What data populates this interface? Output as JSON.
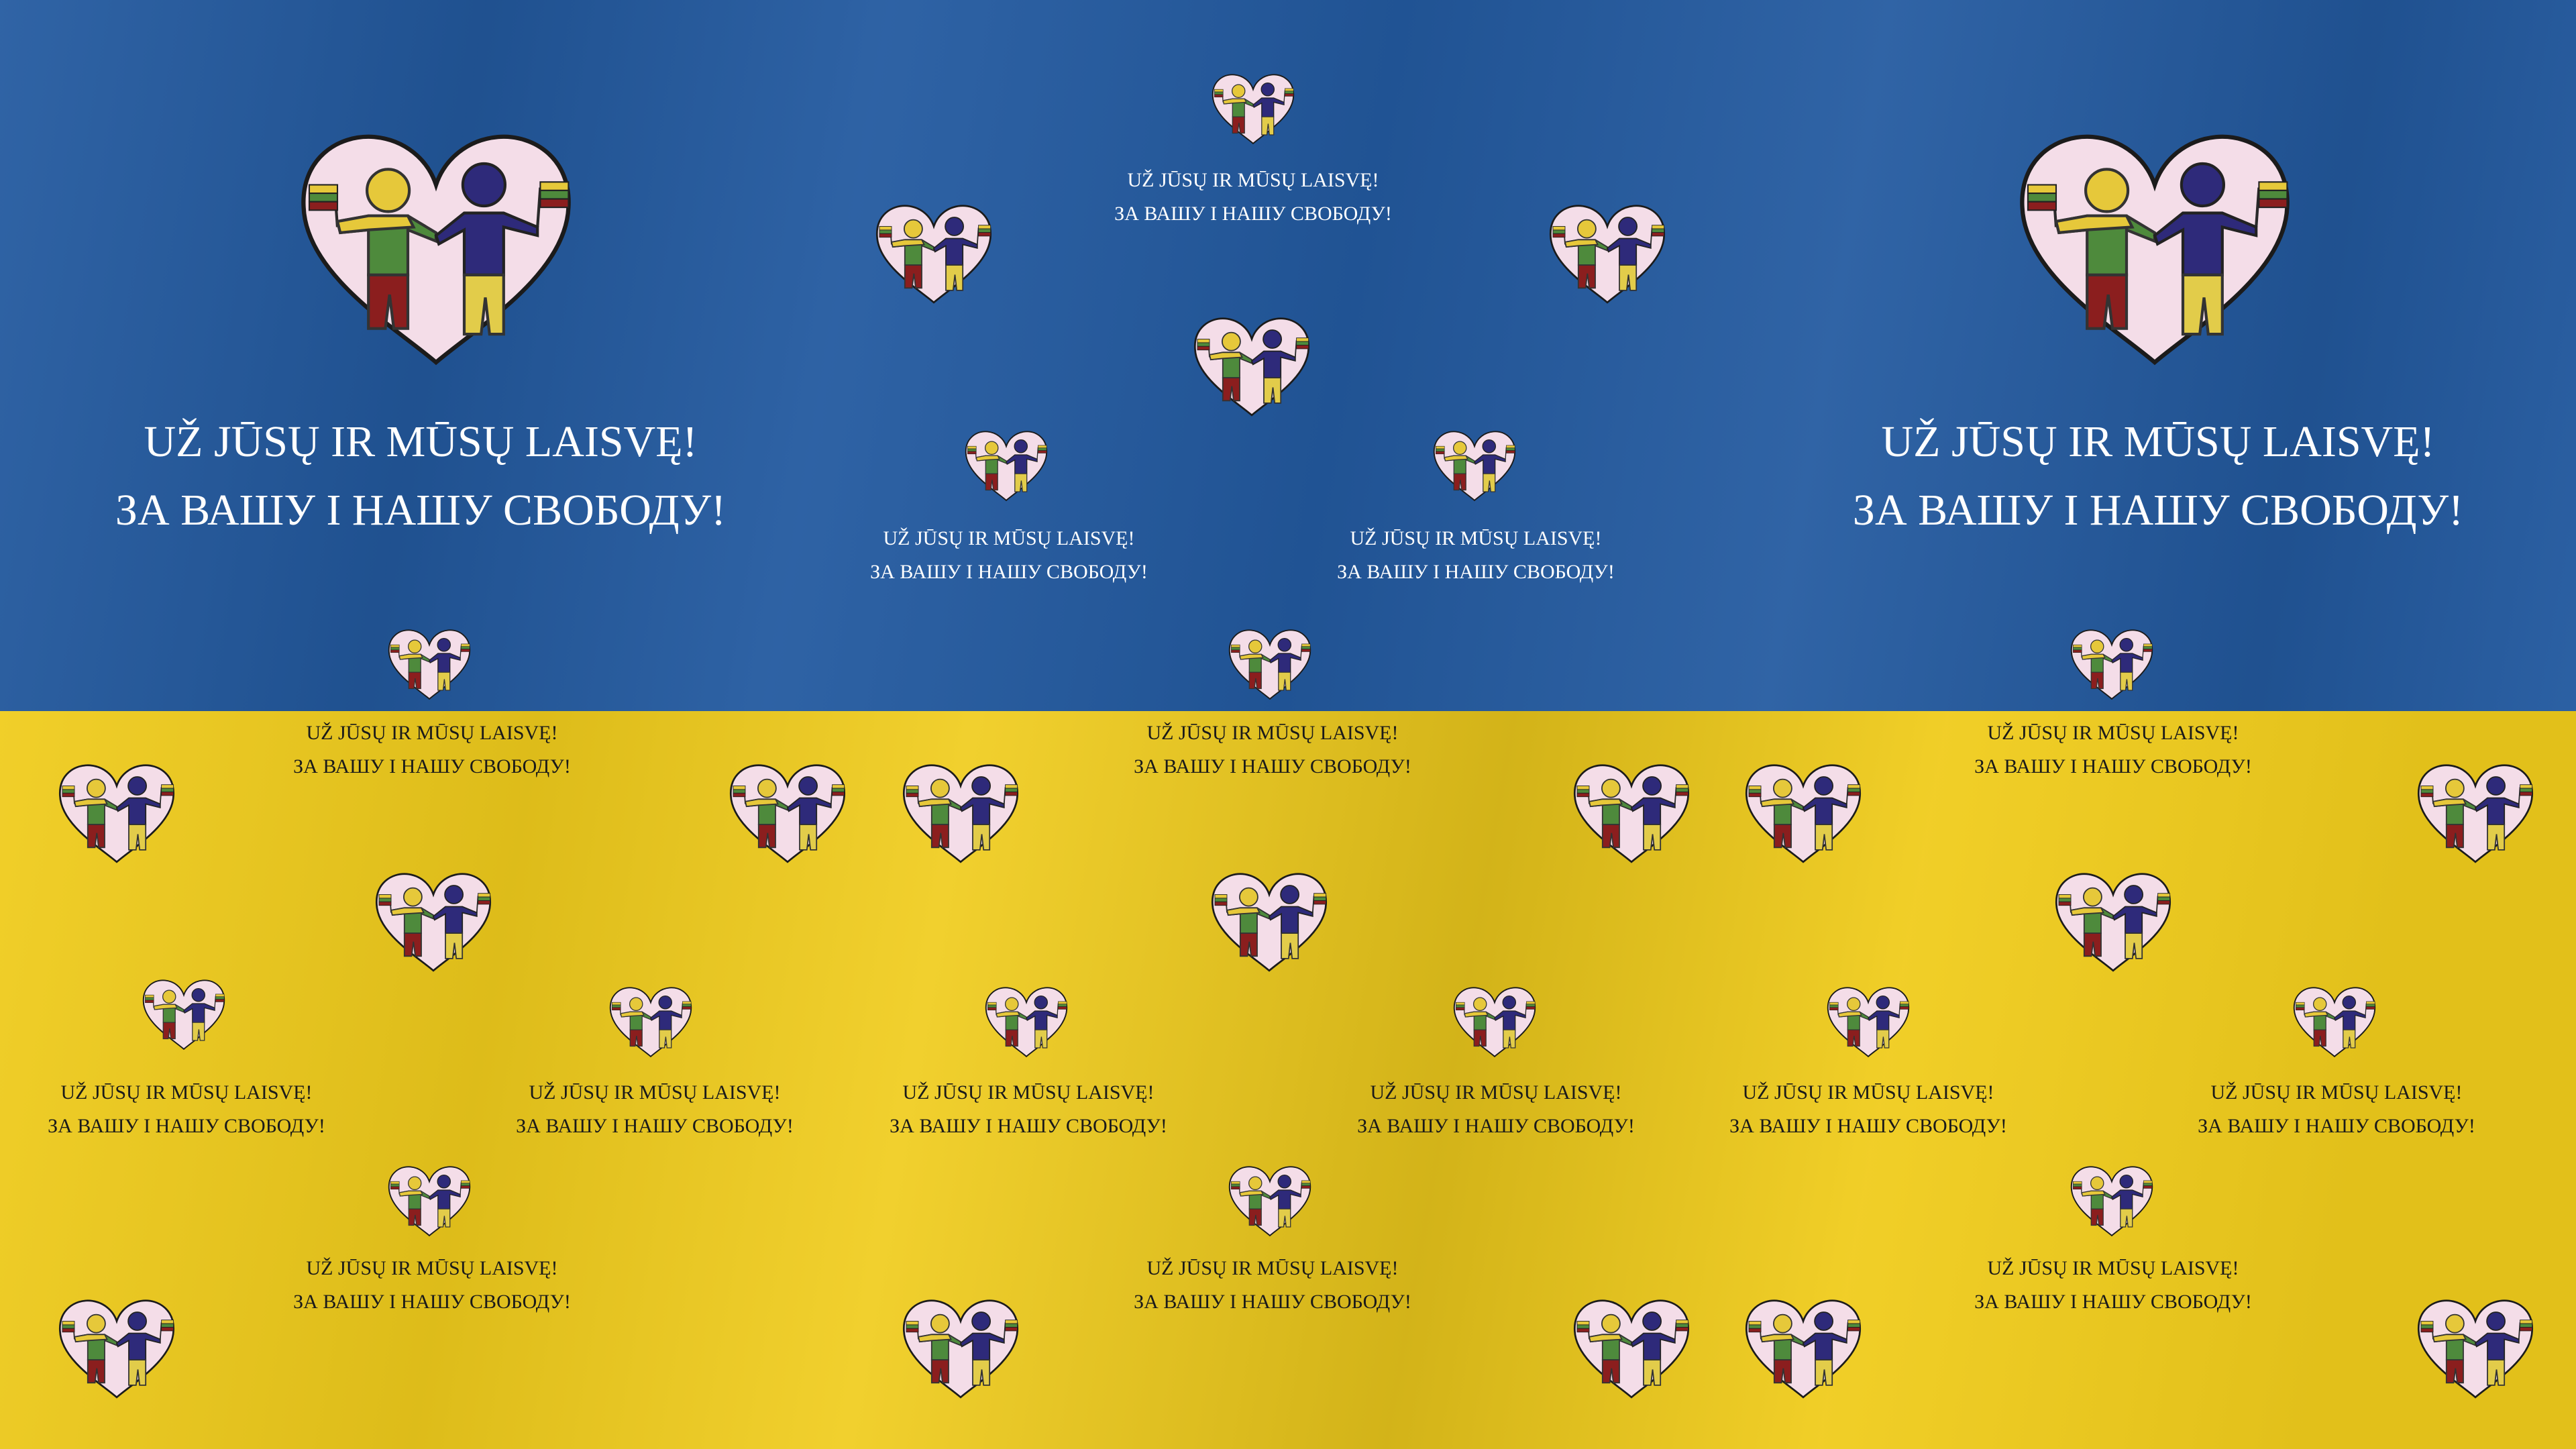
{
  "slogan": {
    "line1": "UŽ JŪSŲ IR MŪSŲ LAISVĘ!",
    "line2": "ЗА ВАШУ І НАШУ СВОБОДУ!"
  },
  "colors": {
    "flag_blue": "#235aa0",
    "flag_yellow": "#f0cc1c",
    "heart_fill": "#f4dde8",
    "figure_left_head": "#e6c83a",
    "figure_left_shirt": "#4e8a3c",
    "figure_left_pants": "#8b1e1e",
    "figure_right": "#2e2a7a",
    "figure_right_pants": "#e2cc4a"
  },
  "icons": {
    "heart_emblem": "heart-with-two-figures-icon"
  }
}
